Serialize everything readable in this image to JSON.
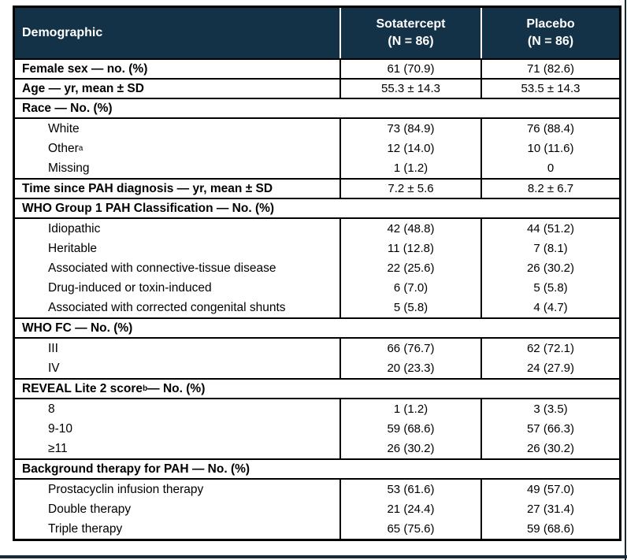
{
  "accent_colors": {
    "header_background": "#143247",
    "header_text": "#ffffff",
    "border": "#000000"
  },
  "table": {
    "header": {
      "demographic": "Demographic",
      "sotatercept_line1": "Sotatercept",
      "sotatercept_line2": "(N = 86)",
      "placebo_line1": "Placebo",
      "placebo_line2": "(N = 86)"
    },
    "female_sex": {
      "label": "Female sex — no. (%)",
      "sot": "61 (70.9)",
      "pbo": "71 (82.6)"
    },
    "age": {
      "label": "Age — yr, mean ± SD",
      "sot": "55.3 ± 14.3",
      "pbo": "53.5 ± 14.3"
    },
    "race": {
      "section": "Race — No. (%)",
      "white": {
        "label": "White",
        "sot": "73 (84.9)",
        "pbo": "76 (88.4)"
      },
      "other": {
        "label": "Other",
        "sup": "a",
        "sot": "12 (14.0)",
        "pbo": "10 (11.6)"
      },
      "missing": {
        "label": "Missing",
        "sot": "1 (1.2)",
        "pbo": "0"
      }
    },
    "time_since_diagnosis": {
      "label": "Time since PAH diagnosis — yr, mean ± SD",
      "sot": "7.2 ± 5.6",
      "pbo": "8.2 ± 6.7"
    },
    "who_group": {
      "section": "WHO Group 1 PAH Classification — No. (%)",
      "idiopathic": {
        "label": "Idiopathic",
        "sot": "42 (48.8)",
        "pbo": "44 (51.2)"
      },
      "heritable": {
        "label": "Heritable",
        "sot": "11 (12.8)",
        "pbo": "7 (8.1)"
      },
      "connective": {
        "label": "Associated with connective-tissue disease",
        "sot": "22 (25.6)",
        "pbo": "26 (30.2)"
      },
      "drug_induced": {
        "label": "Drug-induced or toxin-induced",
        "sot": "6 (7.0)",
        "pbo": "5 (5.8)"
      },
      "congenital": {
        "label": "Associated with corrected congenital shunts",
        "sot": "5 (5.8)",
        "pbo": "4 (4.7)"
      }
    },
    "who_fc": {
      "section": "WHO FC — No. (%)",
      "class3": {
        "label": "III",
        "sot": "66 (76.7)",
        "pbo": "62 (72.1)"
      },
      "class4": {
        "label": "IV",
        "sot": "20 (23.3)",
        "pbo": "24 (27.9)"
      }
    },
    "reveal": {
      "section_main": "REVEAL Lite 2 score",
      "section_sup": "b",
      "section_rest": " — No. (%)",
      "score8": {
        "label": "8",
        "sot": "1 (1.2)",
        "pbo": "3 (3.5)"
      },
      "score9_10": {
        "label": "9-10",
        "sot": "59 (68.6)",
        "pbo": "57 (66.3)"
      },
      "score11": {
        "label": "≥11",
        "sot": "26 (30.2)",
        "pbo": "26 (30.2)"
      }
    },
    "background_therapy": {
      "section": "Background therapy for PAH — No. (%)",
      "prostacyclin": {
        "label": "Prostacyclin infusion therapy",
        "sot": "53 (61.6)",
        "pbo": "49 (57.0)"
      },
      "double": {
        "label": "Double therapy",
        "sot": "21 (24.4)",
        "pbo": "27 (31.4)"
      },
      "triple": {
        "label": "Triple therapy",
        "sot": "65 (75.6)",
        "pbo": "59 (68.6)"
      }
    }
  }
}
